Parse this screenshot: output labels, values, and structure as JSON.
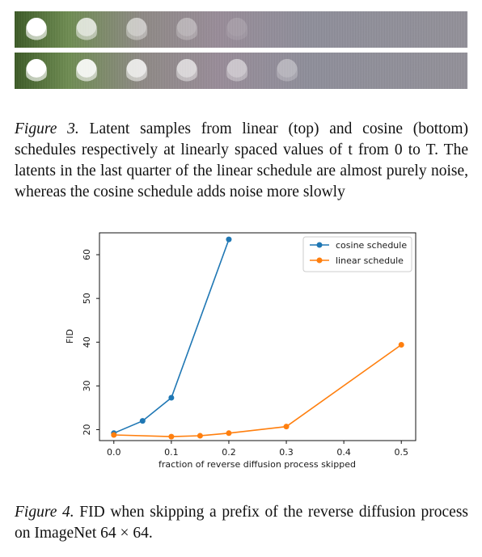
{
  "figure3": {
    "caption_label": "Figure 3.",
    "caption_text": "Latent samples from linear (top) and cosine (bottom) schedules respectively at linearly spaced values of t from 0 to T. The latents in the last quarter of the linear schedule are almost purely noise, whereas the cosine schedule adds noise more slowly"
  },
  "figure4": {
    "caption_label": "Figure 4.",
    "caption_text": "FID when skipping a prefix of the reverse diffusion process on ImageNet 64 × 64."
  },
  "chart_data": {
    "type": "line",
    "title": "",
    "xlabel": "fraction of reverse diffusion process skipped",
    "ylabel": "FID",
    "xlim": [
      -0.025,
      0.525
    ],
    "ylim": [
      17.5,
      65
    ],
    "x_ticks": [
      0.0,
      0.1,
      0.2,
      0.3,
      0.4,
      0.5
    ],
    "x_tick_labels": [
      "0.0",
      "0.1",
      "0.2",
      "0.3",
      "0.4",
      "0.5"
    ],
    "y_ticks": [
      20,
      30,
      40,
      50,
      60
    ],
    "y_tick_labels": [
      "20",
      "30",
      "40",
      "50",
      "60"
    ],
    "grid": false,
    "legend_position": "top-right",
    "series": [
      {
        "name": "cosine schedule",
        "color": "#1f77b4",
        "x": [
          0.0,
          0.05,
          0.1,
          0.2
        ],
        "y": [
          19.2,
          22.0,
          27.3,
          63.5
        ]
      },
      {
        "name": "linear schedule",
        "color": "#ff7f0e",
        "x": [
          0.0,
          0.1,
          0.15,
          0.2,
          0.3,
          0.5
        ],
        "y": [
          18.8,
          18.4,
          18.6,
          19.2,
          20.7,
          39.4
        ]
      }
    ]
  }
}
